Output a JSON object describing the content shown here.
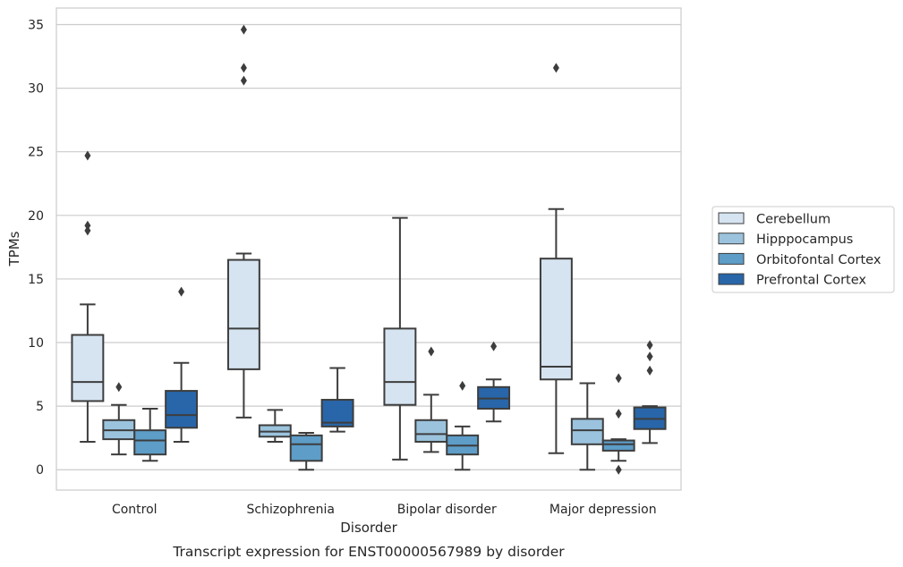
{
  "chart_data": {
    "type": "box",
    "caption": "Transcript expression for ENST00000567989 by disorder",
    "xlabel": "Disorder",
    "ylabel": "TPMs",
    "ylim": [
      -1.6,
      36.3
    ],
    "yticks": [
      0,
      5,
      10,
      15,
      20,
      25,
      30,
      35
    ],
    "grid": true,
    "legend_position": "right",
    "categories": [
      "Control",
      "Schizophrenia",
      "Bipolar disorder",
      "Major depression"
    ],
    "series": [
      {
        "name": "Cerebellum",
        "color": "#d6e4f1",
        "boxes": [
          {
            "whisker_low": 2.2,
            "q1": 5.4,
            "median": 6.9,
            "q3": 10.6,
            "whisker_high": 13.0,
            "outliers": [
              18.8,
              19.2,
              24.7
            ]
          },
          {
            "whisker_low": 4.1,
            "q1": 7.9,
            "median": 11.1,
            "q3": 16.5,
            "whisker_high": 17.0,
            "outliers": [
              30.6,
              31.6,
              34.6
            ]
          },
          {
            "whisker_low": 0.8,
            "q1": 5.1,
            "median": 6.9,
            "q3": 11.1,
            "whisker_high": 19.8,
            "outliers": []
          },
          {
            "whisker_low": 1.3,
            "q1": 7.1,
            "median": 8.1,
            "q3": 16.6,
            "whisker_high": 20.5,
            "outliers": [
              31.6
            ]
          }
        ]
      },
      {
        "name": "Hipppocampus",
        "color": "#9bc3dd",
        "boxes": [
          {
            "whisker_low": 1.2,
            "q1": 2.4,
            "median": 3.1,
            "q3": 3.9,
            "whisker_high": 5.1,
            "outliers": [
              6.5
            ]
          },
          {
            "whisker_low": 2.2,
            "q1": 2.6,
            "median": 3.0,
            "q3": 3.5,
            "whisker_high": 4.7,
            "outliers": []
          },
          {
            "whisker_low": 1.4,
            "q1": 2.2,
            "median": 2.8,
            "q3": 3.9,
            "whisker_high": 5.9,
            "outliers": [
              9.3
            ]
          },
          {
            "whisker_low": 0.0,
            "q1": 2.0,
            "median": 3.1,
            "q3": 4.0,
            "whisker_high": 6.8,
            "outliers": []
          }
        ]
      },
      {
        "name": "Orbitofontal Cortex",
        "color": "#5d9dc8",
        "boxes": [
          {
            "whisker_low": 0.7,
            "q1": 1.2,
            "median": 2.3,
            "q3": 3.1,
            "whisker_high": 4.8,
            "outliers": []
          },
          {
            "whisker_low": 0.0,
            "q1": 0.7,
            "median": 2.0,
            "q3": 2.7,
            "whisker_high": 2.9,
            "outliers": []
          },
          {
            "whisker_low": 0.0,
            "q1": 1.2,
            "median": 1.9,
            "q3": 2.7,
            "whisker_high": 3.4,
            "outliers": [
              6.6
            ]
          },
          {
            "whisker_low": 0.7,
            "q1": 1.5,
            "median": 2.0,
            "q3": 2.3,
            "whisker_high": 2.4,
            "outliers": [
              0.0,
              4.4,
              7.2
            ]
          }
        ]
      },
      {
        "name": "Prefrontal Cortex",
        "color": "#2866a9",
        "boxes": [
          {
            "whisker_low": 2.2,
            "q1": 3.3,
            "median": 4.3,
            "q3": 6.2,
            "whisker_high": 8.4,
            "outliers": [
              14.0
            ]
          },
          {
            "whisker_low": 3.0,
            "q1": 3.4,
            "median": 3.7,
            "q3": 5.5,
            "whisker_high": 8.0,
            "outliers": []
          },
          {
            "whisker_low": 3.8,
            "q1": 4.8,
            "median": 5.6,
            "q3": 6.5,
            "whisker_high": 7.1,
            "outliers": [
              9.7
            ]
          },
          {
            "whisker_low": 2.1,
            "q1": 3.2,
            "median": 4.0,
            "q3": 4.9,
            "whisker_high": 5.0,
            "outliers": [
              7.8,
              8.9,
              9.8
            ]
          }
        ]
      }
    ]
  }
}
